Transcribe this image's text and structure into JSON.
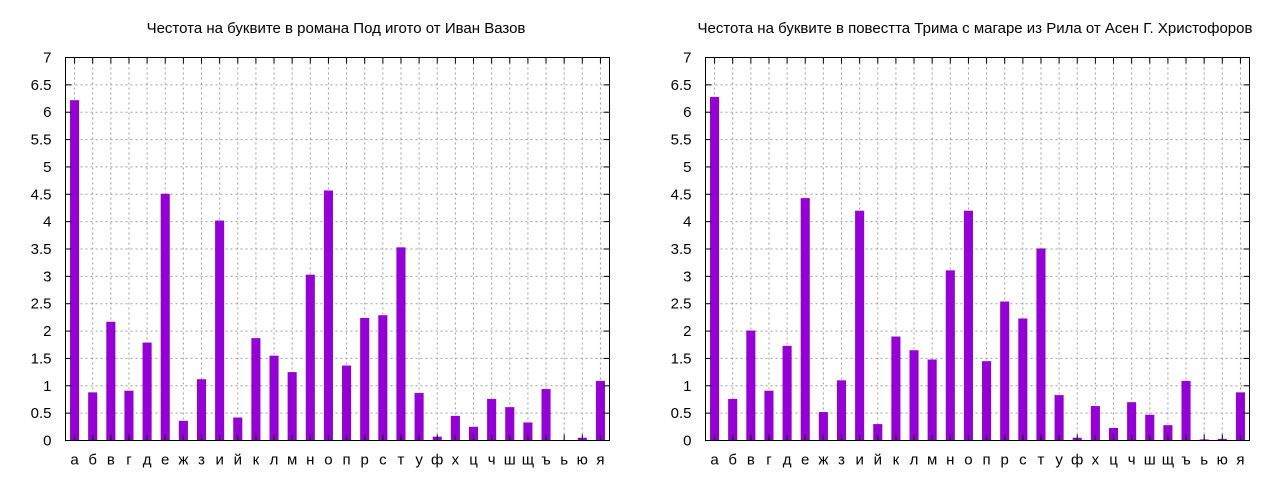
{
  "chart_data": [
    {
      "type": "bar",
      "title": "Честота на буквите в романа Под игото от Иван Вазов",
      "xlabel": "",
      "ylabel": "",
      "ylim": [
        0,
        7
      ],
      "yticks": [
        "0",
        "0.5",
        "1",
        "1.5",
        "2",
        "2.5",
        "3",
        "3.5",
        "4",
        "4.5",
        "5",
        "5.5",
        "6",
        "6.5",
        "7"
      ],
      "grid": true,
      "bar_color": "#9400d3",
      "categories": [
        "а",
        "б",
        "в",
        "г",
        "д",
        "е",
        "ж",
        "з",
        "и",
        "й",
        "к",
        "л",
        "м",
        "н",
        "о",
        "п",
        "р",
        "с",
        "т",
        "у",
        "ф",
        "х",
        "ц",
        "ч",
        "ш",
        "щ",
        "ъ",
        "ь",
        "ю",
        "я"
      ],
      "values": [
        6.22,
        0.88,
        2.17,
        0.91,
        1.79,
        4.51,
        0.36,
        1.12,
        4.02,
        0.42,
        1.87,
        1.55,
        1.25,
        3.03,
        4.57,
        1.37,
        2.24,
        2.29,
        3.53,
        0.87,
        0.07,
        0.45,
        0.25,
        0.76,
        0.61,
        0.33,
        0.94,
        0.0,
        0.05,
        1.09
      ]
    },
    {
      "type": "bar",
      "title": "Честота на буквите в повестта Трима с магаре из Рила от Асен Г. Христофоров",
      "xlabel": "",
      "ylabel": "",
      "ylim": [
        0,
        7
      ],
      "yticks": [
        "0",
        "0.5",
        "1",
        "1.5",
        "2",
        "2.5",
        "3",
        "3.5",
        "4",
        "4.5",
        "5",
        "5.5",
        "6",
        "6.5",
        "7"
      ],
      "grid": true,
      "bar_color": "#9400d3",
      "categories": [
        "а",
        "б",
        "в",
        "г",
        "д",
        "е",
        "ж",
        "з",
        "и",
        "й",
        "к",
        "л",
        "м",
        "н",
        "о",
        "п",
        "р",
        "с",
        "т",
        "у",
        "ф",
        "х",
        "ц",
        "ч",
        "ш",
        "щ",
        "ъ",
        "ь",
        "ю",
        "я"
      ],
      "values": [
        6.28,
        0.76,
        2.01,
        0.91,
        1.73,
        4.43,
        0.52,
        1.1,
        4.2,
        0.3,
        1.9,
        1.65,
        1.48,
        3.11,
        4.2,
        1.45,
        2.54,
        2.23,
        3.51,
        0.83,
        0.05,
        0.63,
        0.23,
        0.7,
        0.47,
        0.28,
        1.09,
        0.02,
        0.03,
        0.88
      ]
    }
  ]
}
